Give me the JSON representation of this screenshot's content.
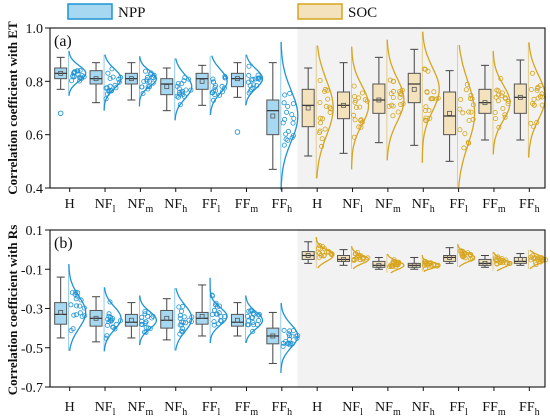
{
  "legend": [
    {
      "label": "NPP",
      "fill": "#a6d8f2",
      "stroke": "#1f94d4"
    },
    {
      "label": "SOC",
      "fill": "#f4e2bd",
      "stroke": "#d7a51d"
    }
  ],
  "colors": {
    "npp_line": "#1f94d4",
    "npp_fill": "#a6d8f2",
    "soc_line": "#d7a51d",
    "soc_fill": "#f4e2bd",
    "soc_bg": "#f2f2f2",
    "axis": "#111111"
  },
  "chart_data": [
    {
      "type": "box",
      "panel_label": "(a)",
      "ylabel": "Correlation coefficient with ET",
      "ylim": [
        0.4,
        1.0
      ],
      "yticks": [
        "0.4",
        "0.6",
        "0.8",
        "1.0"
      ],
      "shaded_series": "SOC",
      "categories": [
        {
          "main": "H",
          "sub": ""
        },
        {
          "main": "NF",
          "sub": "l"
        },
        {
          "main": "NF",
          "sub": "m"
        },
        {
          "main": "NF",
          "sub": "h"
        },
        {
          "main": "FF",
          "sub": "l"
        },
        {
          "main": "FF",
          "sub": "m"
        },
        {
          "main": "FF",
          "sub": "h"
        }
      ],
      "series": [
        {
          "name": "NPP",
          "boxes": [
            {
              "min": 0.77,
              "q1": 0.81,
              "median": 0.83,
              "q3": 0.85,
              "max": 0.89,
              "mean": 0.83,
              "outliers": [
                0.68
              ]
            },
            {
              "min": 0.72,
              "q1": 0.79,
              "median": 0.81,
              "q3": 0.84,
              "max": 0.87,
              "mean": 0.81,
              "outliers": []
            },
            {
              "min": 0.73,
              "q1": 0.79,
              "median": 0.81,
              "q3": 0.83,
              "max": 0.87,
              "mean": 0.81,
              "outliers": []
            },
            {
              "min": 0.69,
              "q1": 0.75,
              "median": 0.79,
              "q3": 0.81,
              "max": 0.85,
              "mean": 0.78,
              "outliers": []
            },
            {
              "min": 0.71,
              "q1": 0.77,
              "median": 0.81,
              "q3": 0.83,
              "max": 0.86,
              "mean": 0.8,
              "outliers": []
            },
            {
              "min": 0.74,
              "q1": 0.78,
              "median": 0.81,
              "q3": 0.83,
              "max": 0.87,
              "mean": 0.81,
              "outliers": [
                0.61
              ]
            },
            {
              "min": 0.47,
              "q1": 0.6,
              "median": 0.69,
              "q3": 0.73,
              "max": 0.87,
              "mean": 0.67,
              "outliers": []
            }
          ]
        },
        {
          "name": "SOC",
          "boxes": [
            {
              "min": 0.52,
              "q1": 0.63,
              "median": 0.71,
              "q3": 0.77,
              "max": 0.85,
              "mean": 0.7,
              "outliers": []
            },
            {
              "min": 0.53,
              "q1": 0.66,
              "median": 0.71,
              "q3": 0.76,
              "max": 0.87,
              "mean": 0.71,
              "outliers": []
            },
            {
              "min": 0.57,
              "q1": 0.68,
              "median": 0.73,
              "q3": 0.79,
              "max": 0.89,
              "mean": 0.73,
              "outliers": []
            },
            {
              "min": 0.56,
              "q1": 0.72,
              "median": 0.79,
              "q3": 0.83,
              "max": 0.92,
              "mean": 0.77,
              "outliers": []
            },
            {
              "min": 0.5,
              "q1": 0.6,
              "median": 0.67,
              "q3": 0.76,
              "max": 0.84,
              "mean": 0.68,
              "outliers": []
            },
            {
              "min": 0.58,
              "q1": 0.68,
              "median": 0.72,
              "q3": 0.77,
              "max": 0.86,
              "mean": 0.72,
              "outliers": []
            },
            {
              "min": 0.58,
              "q1": 0.68,
              "median": 0.74,
              "q3": 0.79,
              "max": 0.88,
              "mean": 0.74,
              "outliers": []
            }
          ]
        }
      ]
    },
    {
      "type": "box",
      "panel_label": "(b)",
      "ylabel": "Correlation coefficient with Rs",
      "ylim": [
        -0.7,
        0.1
      ],
      "yticks": [
        "-0.7",
        "-0.5",
        "-0.3",
        "-0.1",
        "0.1"
      ],
      "shaded_series": "SOC",
      "categories": [
        {
          "main": "H",
          "sub": ""
        },
        {
          "main": "NF",
          "sub": "l"
        },
        {
          "main": "NF",
          "sub": "m"
        },
        {
          "main": "NF",
          "sub": "h"
        },
        {
          "main": "FF",
          "sub": "l"
        },
        {
          "main": "FF",
          "sub": "m"
        },
        {
          "main": "FF",
          "sub": "h"
        }
      ],
      "series": [
        {
          "name": "NPP",
          "boxes": [
            {
              "min": -0.45,
              "q1": -0.38,
              "median": -0.33,
              "q3": -0.27,
              "max": -0.14,
              "mean": -0.32,
              "outliers": []
            },
            {
              "min": -0.47,
              "q1": -0.39,
              "median": -0.35,
              "q3": -0.31,
              "max": -0.24,
              "mean": -0.35,
              "outliers": []
            },
            {
              "min": -0.45,
              "q1": -0.39,
              "median": -0.37,
              "q3": -0.33,
              "max": -0.27,
              "mean": -0.36,
              "outliers": []
            },
            {
              "min": -0.46,
              "q1": -0.4,
              "median": -0.36,
              "q3": -0.31,
              "max": -0.25,
              "mean": -0.35,
              "outliers": []
            },
            {
              "min": -0.44,
              "q1": -0.38,
              "median": -0.35,
              "q3": -0.32,
              "max": -0.18,
              "mean": -0.34,
              "outliers": []
            },
            {
              "min": -0.44,
              "q1": -0.39,
              "median": -0.37,
              "q3": -0.33,
              "max": -0.27,
              "mean": -0.36,
              "outliers": []
            },
            {
              "min": -0.58,
              "q1": -0.48,
              "median": -0.44,
              "q3": -0.4,
              "max": -0.32,
              "mean": -0.44,
              "outliers": []
            }
          ]
        },
        {
          "name": "SOC",
          "boxes": [
            {
              "min": -0.07,
              "q1": -0.05,
              "median": -0.03,
              "q3": -0.01,
              "max": 0.04,
              "mean": -0.03,
              "outliers": []
            },
            {
              "min": -0.08,
              "q1": -0.06,
              "median": -0.05,
              "q3": -0.03,
              "max": 0.0,
              "mean": -0.05,
              "outliers": []
            },
            {
              "min": -0.1,
              "q1": -0.09,
              "median": -0.08,
              "q3": -0.06,
              "max": -0.04,
              "mean": -0.08,
              "outliers": []
            },
            {
              "min": -0.1,
              "q1": -0.09,
              "median": -0.08,
              "q3": -0.07,
              "max": -0.04,
              "mean": -0.08,
              "outliers": []
            },
            {
              "min": -0.07,
              "q1": -0.06,
              "median": -0.04,
              "q3": -0.03,
              "max": 0.01,
              "mean": -0.04,
              "outliers": []
            },
            {
              "min": -0.09,
              "q1": -0.08,
              "median": -0.07,
              "q3": -0.05,
              "max": -0.03,
              "mean": -0.07,
              "outliers": []
            },
            {
              "min": -0.08,
              "q1": -0.07,
              "median": -0.06,
              "q3": -0.04,
              "max": -0.02,
              "mean": -0.05,
              "outliers": []
            }
          ]
        }
      ]
    }
  ]
}
